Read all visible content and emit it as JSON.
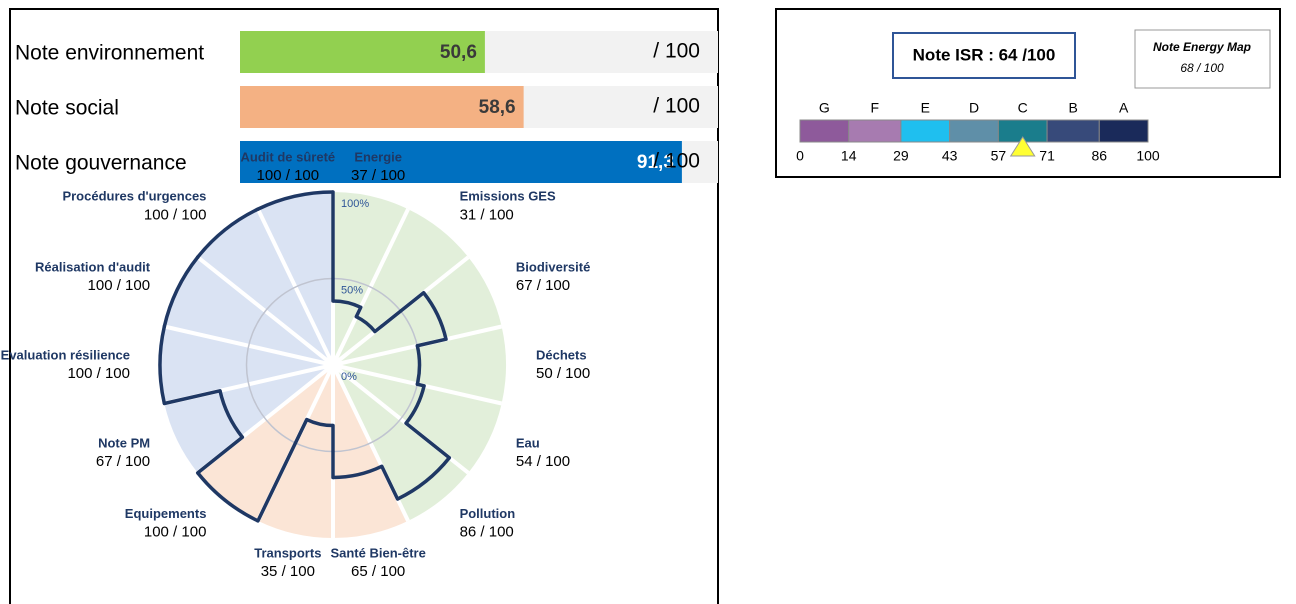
{
  "chart_data": [
    {
      "type": "hbar",
      "categories": [
        "Note environnement",
        "Note social",
        "Note gouvernance"
      ],
      "values": [
        50.6,
        58.6,
        91.3
      ],
      "value_labels": [
        "50,6",
        "58,6",
        "91,3"
      ],
      "colors": [
        "#92d050",
        "#f4b183",
        "#0070c0"
      ],
      "label_colors": [
        "#3a3a3a",
        "#3a3a3a",
        "#ffffff"
      ],
      "xlim": [
        0,
        100
      ],
      "max_label": "/ 100"
    },
    {
      "type": "polar",
      "categories": [
        "Energie",
        "Emissions GES",
        "Biodiversité",
        "Déchets",
        "Eau",
        "Pollution",
        "Santé Bien-être",
        "Transports",
        "Equipements",
        "Note PM",
        "Evaluation résilience",
        "Réalisation d'audit",
        "Procédures d'urgences",
        "Audit de sûreté"
      ],
      "values": [
        37,
        31,
        67,
        50,
        54,
        86,
        65,
        35,
        100,
        67,
        100,
        100,
        100,
        100
      ],
      "value_labels": [
        "37 / 100",
        "31 / 100",
        "67 / 100",
        "50 / 100",
        "54 / 100",
        "86 / 100",
        "65 / 100",
        "35 / 100",
        "100 / 100",
        "67 / 100",
        "100 / 100",
        "100 / 100",
        "100 / 100",
        "100 / 100"
      ],
      "colors": [
        "#e2efda",
        "#e2efda",
        "#e2efda",
        "#e2efda",
        "#e2efda",
        "#e2efda",
        "#fbe5d6",
        "#fbe5d6",
        "#fbe5d6",
        "#dae3f3",
        "#dae3f3",
        "#dae3f3",
        "#dae3f3",
        "#dae3f3"
      ],
      "line_color": "#1f3864",
      "rlim": [
        0,
        100
      ],
      "rticks": [
        {
          "value": 0,
          "label": "0%"
        },
        {
          "value": 50,
          "label": "50%"
        },
        {
          "value": 100,
          "label": "100%"
        }
      ]
    },
    {
      "type": "gauge",
      "title": "Note ISR : 64 /100",
      "value": 64,
      "grades": [
        "G",
        "F",
        "E",
        "D",
        "C",
        "B",
        "A"
      ],
      "colors": [
        "#8e5a9b",
        "#a77bb0",
        "#1fbfef",
        "#5f8fa8",
        "#1a7d8c",
        "#374a7a",
        "#1a2a5a"
      ],
      "marker_color": "#ffff33",
      "xlim": [
        0,
        100
      ],
      "xticks": [
        0,
        14,
        29,
        43,
        57,
        71,
        86,
        100
      ],
      "note_title": "Note Energy Map",
      "note_value": "68 / 100"
    }
  ]
}
